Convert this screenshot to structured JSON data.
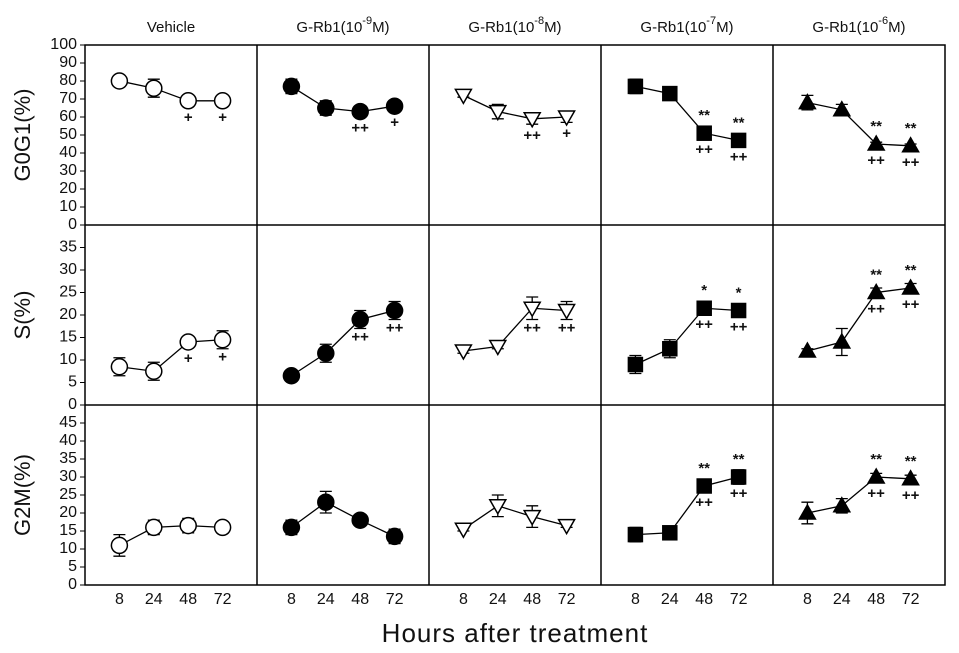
{
  "chart_data": {
    "type": "line",
    "xlabel": "Hours after treatment",
    "categories": [
      "8",
      "24",
      "48",
      "72"
    ],
    "rows": [
      {
        "ylabel": "G0G1(%)",
        "ylim": [
          0,
          100
        ],
        "yticks": [
          0,
          10,
          20,
          30,
          40,
          50,
          60,
          70,
          80,
          90,
          100
        ]
      },
      {
        "ylabel": "S(%)",
        "ylim": [
          0,
          40
        ],
        "yticks": [
          0,
          5,
          10,
          15,
          20,
          25,
          30,
          35
        ]
      },
      {
        "ylabel": "G2M(%)",
        "ylim": [
          0,
          50
        ],
        "yticks": [
          0,
          5,
          10,
          15,
          20,
          25,
          30,
          35,
          40,
          45
        ]
      }
    ],
    "panels": [
      {
        "title": "Vehicle",
        "marker": "circle-open",
        "rows": [
          {
            "values": [
              80,
              76,
              69,
              69
            ],
            "errors": [
              1,
              5,
              1,
              1
            ],
            "below": [
              null,
              null,
              "+",
              "+"
            ]
          },
          {
            "values": [
              8.5,
              7.5,
              14,
              14.5
            ],
            "errors": [
              2,
              2,
              1,
              2
            ],
            "below": [
              null,
              null,
              "+",
              "+"
            ]
          },
          {
            "values": [
              11,
              16,
              16.5,
              16
            ],
            "errors": [
              3,
              2,
              2,
              1
            ]
          }
        ]
      },
      {
        "title": "G-Rb1(10",
        "exponent": "-9",
        "unit": "M)",
        "marker": "circle-filled",
        "rows": [
          {
            "values": [
              77,
              65,
              63,
              66
            ],
            "errors": [
              4,
              4,
              3,
              2
            ],
            "below": [
              null,
              null,
              "++",
              "+"
            ]
          },
          {
            "values": [
              6.5,
              11.5,
              19,
              21
            ],
            "errors": [
              0.5,
              2,
              2,
              2
            ],
            "below": [
              null,
              null,
              "++",
              "++"
            ]
          },
          {
            "values": [
              16,
              23,
              18,
              13.5
            ],
            "errors": [
              2,
              3,
              1,
              2
            ]
          }
        ]
      },
      {
        "title": "G-Rb1(10",
        "exponent": "-8",
        "unit": "M)",
        "marker": "triangle-down-open",
        "rows": [
          {
            "values": [
              72,
              63,
              59,
              60
            ],
            "errors": [
              1,
              4,
              3,
              3
            ],
            "below": [
              null,
              null,
              "++",
              "+"
            ]
          },
          {
            "values": [
              12,
              13,
              21.5,
              21
            ],
            "errors": [
              0.5,
              0.5,
              2.5,
              2
            ],
            "below": [
              null,
              null,
              "++",
              "++"
            ]
          },
          {
            "values": [
              15.5,
              22,
              19,
              16.5
            ],
            "errors": [
              0.5,
              3,
              3,
              0.5
            ]
          }
        ]
      },
      {
        "title": "G-Rb1(10",
        "exponent": "-7",
        "unit": "M)",
        "marker": "square-filled",
        "rows": [
          {
            "values": [
              77,
              73,
              51,
              47
            ],
            "errors": [
              4,
              1,
              3,
              3
            ],
            "above": [
              null,
              null,
              "**",
              "**"
            ],
            "below": [
              null,
              null,
              "++",
              "++"
            ]
          },
          {
            "values": [
              9,
              12.5,
              21.5,
              21
            ],
            "errors": [
              2,
              2,
              0.5,
              0.5
            ],
            "above": [
              null,
              null,
              "*",
              "*"
            ],
            "below": [
              null,
              null,
              "++",
              "++"
            ]
          },
          {
            "values": [
              14,
              14.5,
              27.5,
              30
            ],
            "errors": [
              2,
              0.5,
              1,
              2
            ],
            "above": [
              null,
              null,
              "**",
              "**"
            ],
            "below": [
              null,
              null,
              "++",
              "++"
            ]
          }
        ]
      },
      {
        "title": "G-Rb1(10",
        "exponent": "-6",
        "unit": "M)",
        "marker": "triangle-up-filled",
        "rows": [
          {
            "values": [
              68,
              64,
              45,
              44
            ],
            "errors": [
              4,
              3,
              1,
              1
            ],
            "above": [
              null,
              null,
              "**",
              "**"
            ],
            "below": [
              null,
              null,
              "++",
              "++"
            ]
          },
          {
            "values": [
              12,
              14,
              25,
              26
            ],
            "errors": [
              0.5,
              3,
              1,
              1
            ],
            "above": [
              null,
              null,
              "**",
              "**"
            ],
            "below": [
              null,
              null,
              "++",
              "++"
            ]
          },
          {
            "values": [
              20,
              22,
              30,
              29.5
            ],
            "errors": [
              3,
              2,
              1,
              1
            ],
            "above": [
              null,
              null,
              "**",
              "**"
            ],
            "below": [
              null,
              null,
              "++",
              "++"
            ]
          }
        ]
      }
    ]
  }
}
